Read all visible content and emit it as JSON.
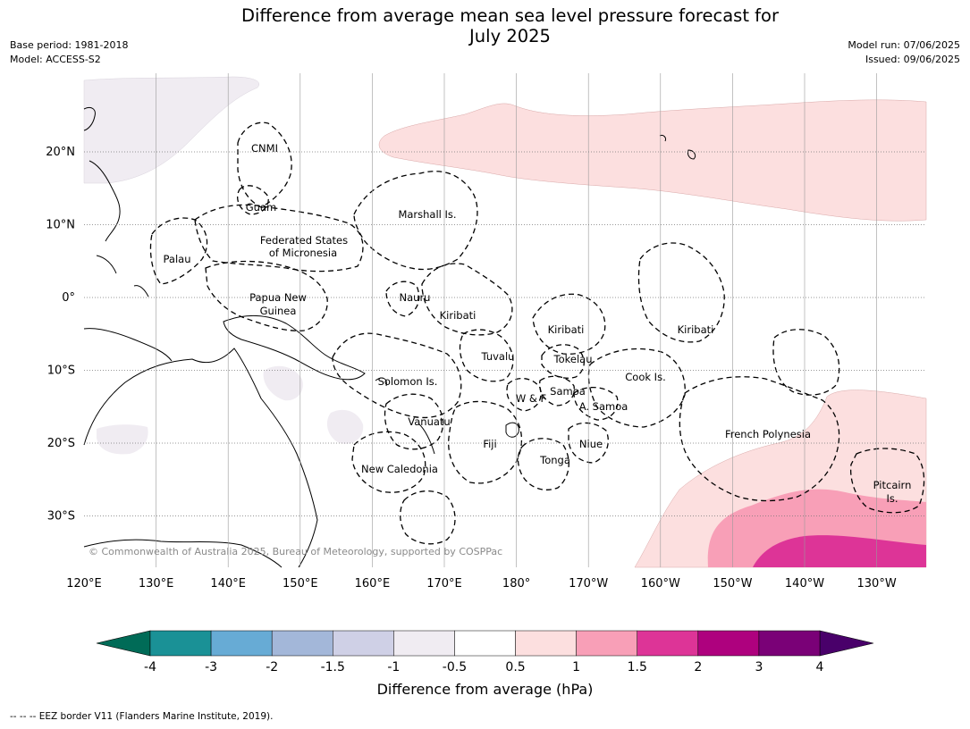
{
  "title_line1": "Difference from average mean sea level pressure forecast for",
  "title_line2": "July 2025",
  "base_period": "Base period: 1981-2018",
  "model": "Model: ACCESS-S2",
  "model_run": "Model run: 07/06/2025",
  "issued": "Issued: 09/06/2025",
  "copyright": "© Commonwealth of Australia 2025, Bureau of Meteorology, supported by COSPPac",
  "eez_note": "--  --  -- EEZ border V11 (Flanders Marine Institute, 2019).",
  "map": {
    "lat_labels": [
      "20°N",
      "10°N",
      "0°",
      "10°S",
      "20°S",
      "30°S"
    ],
    "lon_labels": [
      "120°E",
      "130°E",
      "140°E",
      "150°E",
      "160°E",
      "170°E",
      "180°",
      "170°W",
      "160°W",
      "150°W",
      "140°W",
      "130°W"
    ],
    "region_labels": [
      "CNMI",
      "Guam",
      "Marshall Is.",
      "Federated States",
      "of Micronesia",
      "Palau",
      "Nauru",
      "Papua New",
      "Guinea",
      "Kiribati",
      "Kiribati",
      "Kiribati",
      "Tuvalu",
      "Tokelau",
      "Solomon Is.",
      "Cook Is.",
      "Samoa",
      "W & F",
      "A. Samoa",
      "Vanuatu",
      "Fiji",
      "Niue",
      "French Polynesia",
      "New Caledonia",
      "Tonga",
      "Pitcairn",
      "Is."
    ]
  },
  "colorbar": {
    "label": "Difference from average (hPa)",
    "ticks": [
      "-4",
      "-3",
      "-2",
      "-1.5",
      "-1",
      "-0.5",
      "0.5",
      "1",
      "1.5",
      "2",
      "3",
      "4"
    ],
    "colors": {
      "below_min": "#006b57",
      "bins": [
        "#1a9196",
        "#67abd5",
        "#a3b7d9",
        "#cfd0e6",
        "#f0ecf2",
        "#ffffff",
        "#fcdfdf",
        "#f89fb7",
        "#dd3497",
        "#ae017e",
        "#7a0177"
      ],
      "above_max": "#49006a"
    }
  }
}
